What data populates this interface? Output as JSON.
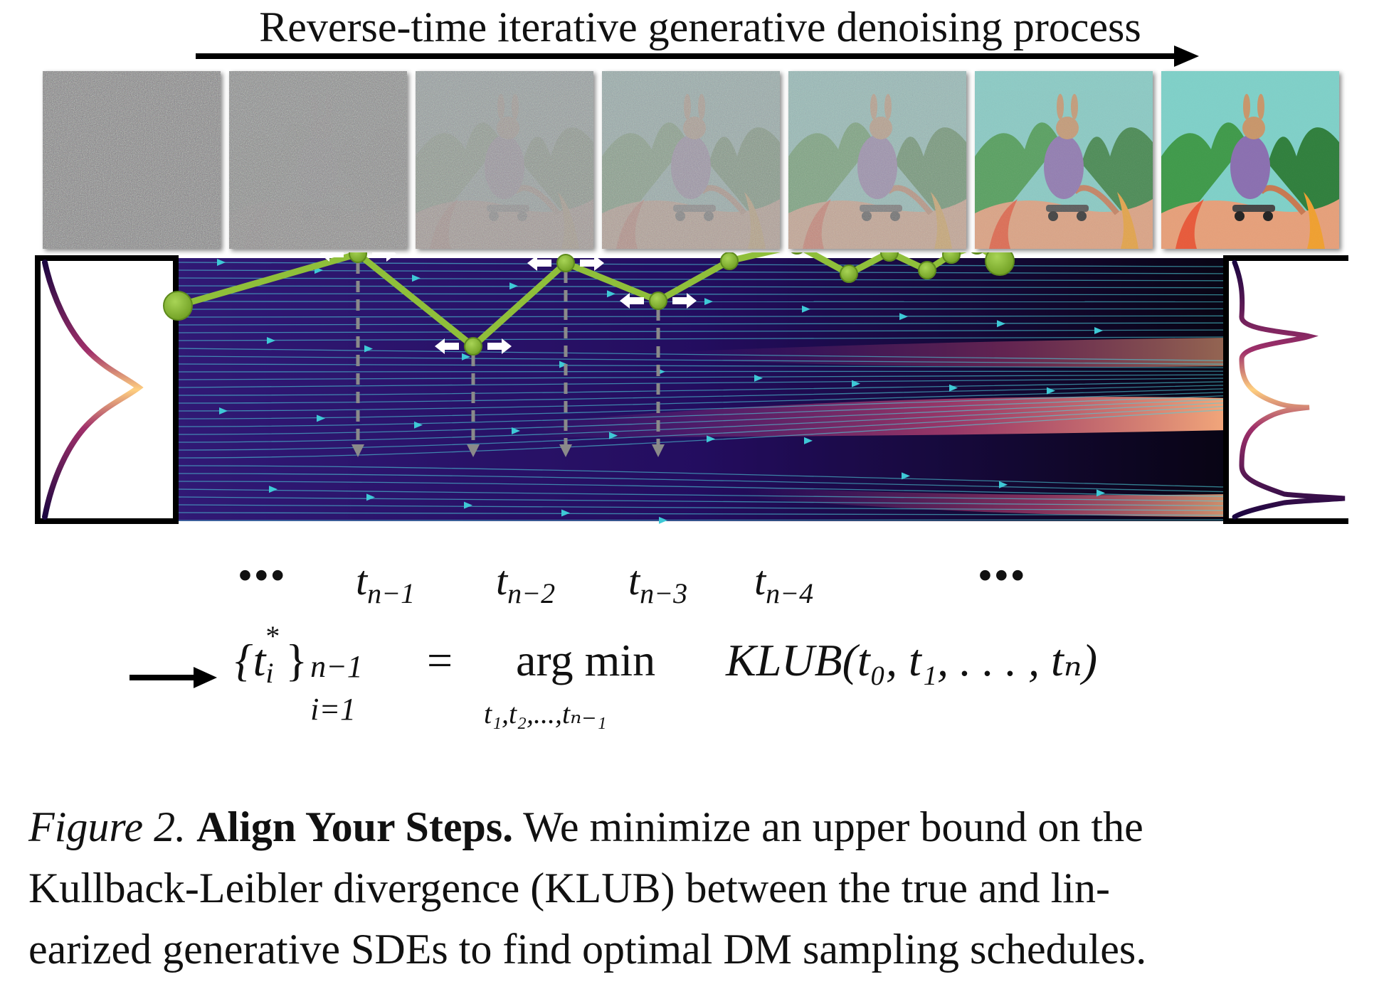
{
  "header": {
    "title": "Reverse-time iterative generative denoising process"
  },
  "frames": {
    "count": 7,
    "noise_levels": [
      1.0,
      0.92,
      0.7,
      0.55,
      0.38,
      0.12,
      0.0
    ]
  },
  "time_labels": {
    "left_dots": "•••",
    "right_dots": "•••",
    "labels": [
      {
        "base": "t",
        "sub": "n−1"
      },
      {
        "base": "t",
        "sub": "n−2"
      },
      {
        "base": "t",
        "sub": "n−3"
      },
      {
        "base": "t",
        "sub": "n−4"
      }
    ]
  },
  "formula": {
    "lhs_set": "{t",
    "lhs_star": "*",
    "lhs_i": "i",
    "lhs_close": "}",
    "lhs_sup": "n−1",
    "lhs_sub": "i=1",
    "equals": "=",
    "argmin": "arg min",
    "argmin_sub": "t₁,t₂,...,tₙ₋₁",
    "objective": "KLUB(t₀, t₁, . . . , tₙ)"
  },
  "caption": {
    "fig_label": "Figure 2.",
    "bold_title": "Align Your Steps.",
    "line1_rest": " We minimize an upper bound on the",
    "line2": "Kullback-Leibler divergence (KLUB) between the true and lin-",
    "line3": "earized generative SDEs to find optimal DM sampling schedules."
  },
  "colors": {
    "path_green": "#8fbf3a",
    "flow_bg": "#1a0b3a",
    "arrow_cyan": "#3ec9d6"
  }
}
